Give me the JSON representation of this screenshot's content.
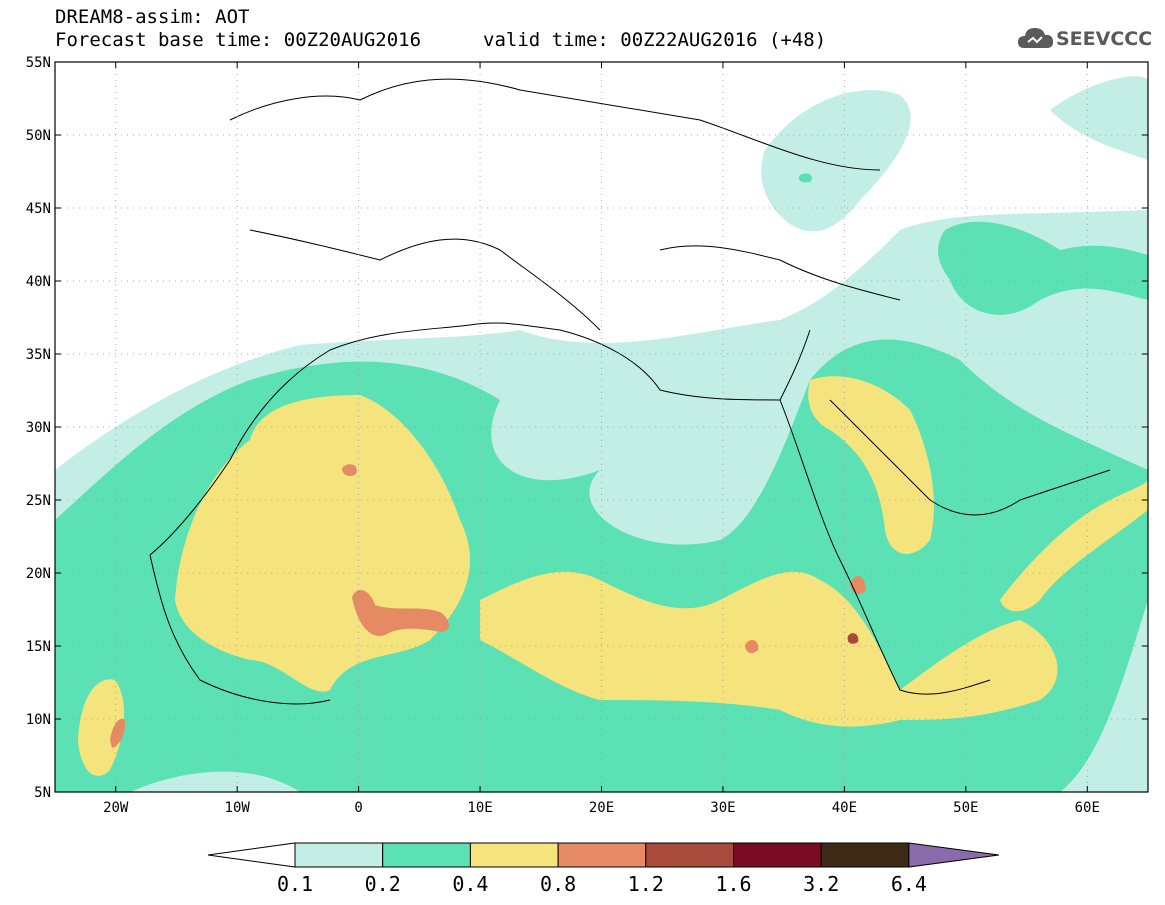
{
  "header": {
    "line1": "DREAM8-assim: AOT",
    "line2": "Forecast base time: 00Z20AUG2016",
    "valid": "valid time: 00Z22AUG2016 (+48)"
  },
  "logo": {
    "text": "SEEVCCC",
    "icon": "cloud-icon"
  },
  "map": {
    "lon_range": [
      -25,
      65
    ],
    "lat_range": [
      5,
      55
    ],
    "lat_labels": [
      "55N",
      "50N",
      "45N",
      "40N",
      "35N",
      "30N",
      "25N",
      "20N",
      "15N",
      "10N",
      "5N"
    ],
    "lon_labels": [
      "20W",
      "10W",
      "0",
      "10E",
      "20E",
      "30E",
      "40E",
      "50E",
      "60E"
    ]
  },
  "colorbar": {
    "levels": [
      "0.1",
      "0.2",
      "0.4",
      "0.8",
      "1.2",
      "1.6",
      "3.2",
      "6.4"
    ],
    "colors": [
      "#ffffff",
      "#c2eee6",
      "#5be1b4",
      "#f5e47d",
      "#e68a64",
      "#a84b3c",
      "#7a0b25",
      "#3c2916",
      "#8a6bab"
    ]
  }
}
